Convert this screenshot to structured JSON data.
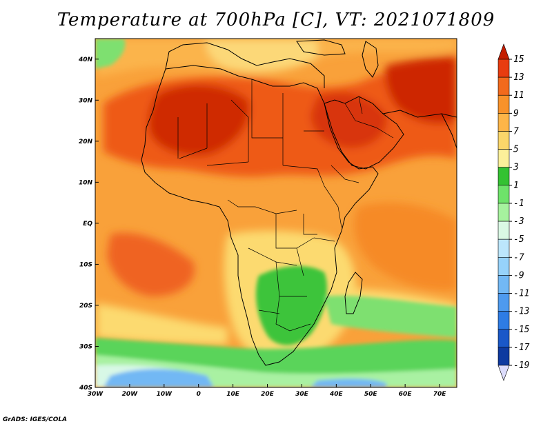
{
  "title": "Temperature at 700hPa [C], VT: 2021071809",
  "credit": "GrADS: IGES/COLA",
  "map": {
    "lon_ticks": [
      "30W",
      "20W",
      "10W",
      "0",
      "10E",
      "20E",
      "30E",
      "40E",
      "50E",
      "60E",
      "70E"
    ],
    "lat_ticks": [
      "40N",
      "30N",
      "20N",
      "10N",
      "EQ",
      "10S",
      "20S",
      "30S",
      "40S"
    ],
    "lon_range": [
      -30,
      75
    ],
    "lat_range": [
      -40,
      45
    ]
  },
  "colorbar": {
    "labels": [
      "15",
      "13",
      "11",
      "9",
      "7",
      "5",
      "3",
      "1",
      "-1",
      "-3",
      "-5",
      "-7",
      "-9",
      "-11",
      "-13",
      "-15",
      "-17",
      "-19"
    ],
    "colors": [
      "#c41e00",
      "#e83c10",
      "#f26a1c",
      "#f8922a",
      "#fdb548",
      "#fbd66a",
      "#fcf09a",
      "#34c232",
      "#6ee36a",
      "#a6f29e",
      "#daf8e4",
      "#bce6fc",
      "#96d2fa",
      "#72b8f4",
      "#4e9aee",
      "#2e7ce4",
      "#1a58c8",
      "#0e3aa0",
      "#0a1e6e"
    ]
  },
  "colors": {
    "land_base": "#f8922a",
    "ocean_base": "#f8a040",
    "border": "#000000"
  }
}
